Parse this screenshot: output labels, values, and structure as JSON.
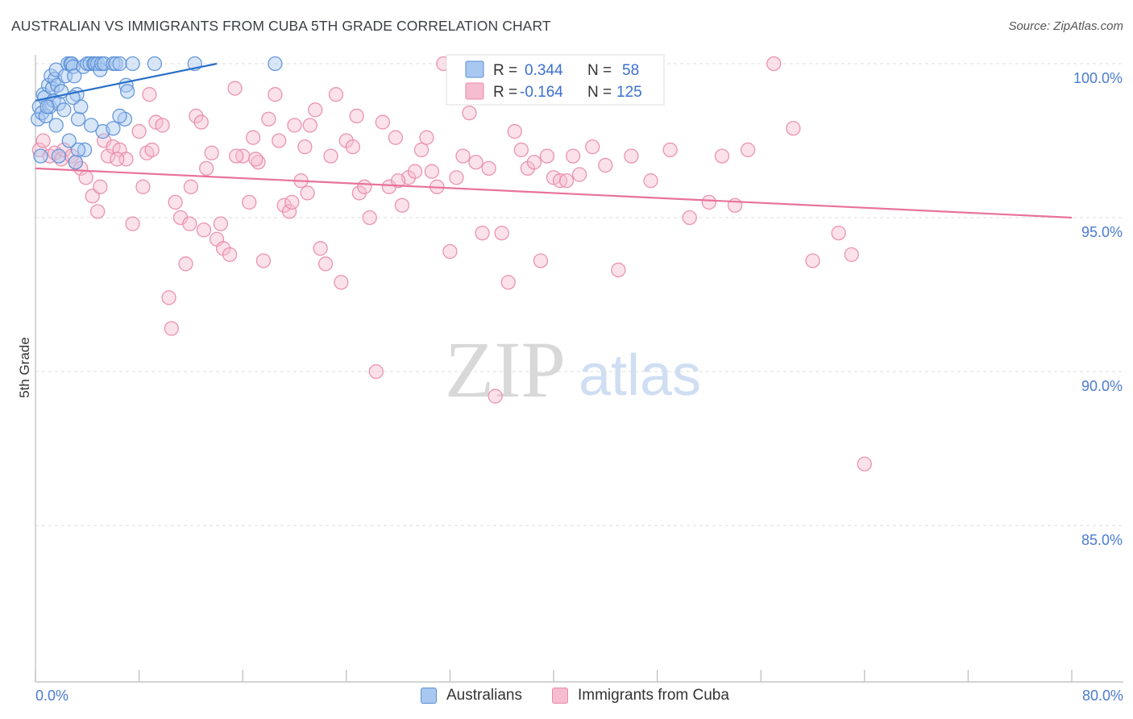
{
  "title": "AUSTRALIAN VS IMMIGRANTS FROM CUBA 5TH GRADE CORRELATION CHART",
  "source": "Source: ZipAtlas.com",
  "watermark": {
    "zip": "ZIP",
    "atlas": "atlas"
  },
  "legend": {
    "r_label": "R =",
    "n_label": "N =",
    "blue": {
      "r": "0.344",
      "n": "58"
    },
    "pink": {
      "r": "-0.164",
      "n": "125"
    }
  },
  "bottom_legend": {
    "blue": "Australians",
    "pink": "Immigrants from Cuba"
  },
  "colors": {
    "blue_fill": "#a9c8f0",
    "blue_stroke": "#5a8fd6",
    "blue_line": "#2a6fc9",
    "pink_fill": "#f6bcd0",
    "pink_stroke": "#e88aa9",
    "pink_line": "#e8739a",
    "tick": "#4a7bd0",
    "grid": "#dddddd"
  },
  "chart_data": {
    "type": "scatter",
    "title": "AUSTRALIAN VS IMMIGRANTS FROM CUBA 5TH GRADE CORRELATION CHART",
    "xlabel": "",
    "ylabel": "5th Grade",
    "xlim": [
      0,
      80
    ],
    "ylim": [
      80.5,
      100.8
    ],
    "x_tick_labels": {
      "left": "0.0%",
      "right": "80.0%"
    },
    "y_ticks": [
      100,
      95,
      90,
      85
    ],
    "y_tick_labels": [
      "100.0%",
      "95.0%",
      "90.0%",
      "85.0%"
    ],
    "series": [
      {
        "name": "Australians",
        "color": "blue",
        "trend": {
          "x0": 0,
          "y0": 98.8,
          "x1": 14,
          "y1": 100.0
        },
        "points": [
          [
            0.2,
            98.2
          ],
          [
            0.3,
            98.6
          ],
          [
            0.5,
            98.4
          ],
          [
            0.6,
            99.0
          ],
          [
            0.7,
            98.9
          ],
          [
            0.8,
            98.3
          ],
          [
            1.0,
            99.3
          ],
          [
            1.1,
            98.6
          ],
          [
            1.2,
            99.6
          ],
          [
            1.3,
            99.2
          ],
          [
            1.4,
            98.8
          ],
          [
            1.5,
            99.5
          ],
          [
            1.6,
            99.8
          ],
          [
            1.7,
            99.3
          ],
          [
            1.8,
            98.7
          ],
          [
            2.0,
            99.1
          ],
          [
            2.2,
            98.5
          ],
          [
            2.3,
            99.6
          ],
          [
            2.5,
            100.0
          ],
          [
            2.7,
            100.0
          ],
          [
            2.8,
            100.0
          ],
          [
            2.9,
            99.9
          ],
          [
            3.0,
            99.6
          ],
          [
            3.2,
            99.0
          ],
          [
            3.3,
            98.2
          ],
          [
            3.5,
            98.6
          ],
          [
            3.7,
            99.9
          ],
          [
            4.0,
            100.0
          ],
          [
            4.2,
            100.0
          ],
          [
            4.5,
            100.0
          ],
          [
            4.6,
            100.0
          ],
          [
            4.8,
            100.0
          ],
          [
            5.0,
            99.8
          ],
          [
            5.1,
            100.0
          ],
          [
            5.3,
            100.0
          ],
          [
            6.0,
            100.0
          ],
          [
            6.2,
            100.0
          ],
          [
            6.5,
            100.0
          ],
          [
            7.0,
            99.3
          ],
          [
            7.5,
            100.0
          ],
          [
            3.8,
            97.2
          ],
          [
            5.2,
            97.8
          ],
          [
            6.0,
            97.9
          ],
          [
            6.9,
            98.2
          ],
          [
            1.6,
            98.0
          ],
          [
            2.9,
            98.9
          ],
          [
            3.3,
            97.2
          ],
          [
            1.8,
            97.0
          ],
          [
            2.6,
            97.5
          ],
          [
            0.4,
            97.0
          ],
          [
            7.1,
            99.1
          ],
          [
            4.3,
            98.0
          ],
          [
            6.5,
            98.3
          ],
          [
            3.1,
            96.8
          ],
          [
            0.9,
            98.6
          ],
          [
            12.3,
            100.0
          ],
          [
            18.5,
            100.0
          ],
          [
            9.2,
            100.0
          ]
        ]
      },
      {
        "name": "Immigrants from Cuba",
        "color": "pink",
        "trend": {
          "x0": 0,
          "y0": 96.6,
          "x1": 80,
          "y1": 95.0
        },
        "points": [
          [
            0.3,
            97.2
          ],
          [
            0.6,
            97.5
          ],
          [
            1.1,
            97.0
          ],
          [
            1.5,
            97.1
          ],
          [
            2.0,
            96.9
          ],
          [
            2.2,
            97.2
          ],
          [
            2.8,
            97.0
          ],
          [
            3.1,
            96.8
          ],
          [
            3.5,
            96.6
          ],
          [
            3.9,
            96.3
          ],
          [
            4.4,
            95.7
          ],
          [
            4.8,
            95.2
          ],
          [
            5.3,
            97.5
          ],
          [
            5.6,
            97.0
          ],
          [
            6.0,
            97.3
          ],
          [
            6.5,
            97.2
          ],
          [
            7.0,
            96.9
          ],
          [
            7.5,
            94.8
          ],
          [
            8.0,
            97.8
          ],
          [
            8.3,
            96.0
          ],
          [
            8.6,
            97.1
          ],
          [
            8.8,
            99.0
          ],
          [
            9.3,
            98.1
          ],
          [
            9.8,
            98.0
          ],
          [
            10.3,
            92.4
          ],
          [
            10.5,
            91.4
          ],
          [
            10.8,
            95.5
          ],
          [
            11.2,
            95.0
          ],
          [
            11.6,
            93.5
          ],
          [
            12.0,
            96.0
          ],
          [
            12.4,
            98.3
          ],
          [
            12.8,
            98.1
          ],
          [
            13.2,
            96.6
          ],
          [
            13.6,
            97.1
          ],
          [
            14.0,
            94.3
          ],
          [
            14.5,
            94.0
          ],
          [
            15.0,
            93.8
          ],
          [
            15.4,
            99.2
          ],
          [
            16.0,
            97.0
          ],
          [
            16.5,
            95.5
          ],
          [
            16.8,
            97.6
          ],
          [
            17.2,
            96.8
          ],
          [
            17.6,
            93.6
          ],
          [
            18.0,
            98.2
          ],
          [
            18.5,
            99.0
          ],
          [
            18.8,
            97.5
          ],
          [
            19.2,
            95.4
          ],
          [
            19.6,
            95.2
          ],
          [
            20.0,
            98.0
          ],
          [
            20.5,
            96.2
          ],
          [
            20.8,
            97.3
          ],
          [
            21.2,
            98.0
          ],
          [
            21.6,
            98.5
          ],
          [
            22.0,
            94.0
          ],
          [
            22.4,
            93.5
          ],
          [
            22.8,
            97.0
          ],
          [
            23.2,
            99.0
          ],
          [
            23.6,
            92.9
          ],
          [
            24.0,
            97.5
          ],
          [
            24.5,
            97.3
          ],
          [
            25.0,
            95.8
          ],
          [
            25.4,
            96.0
          ],
          [
            25.8,
            95.0
          ],
          [
            26.3,
            90.0
          ],
          [
            26.8,
            98.1
          ],
          [
            27.3,
            96.0
          ],
          [
            27.8,
            97.6
          ],
          [
            28.3,
            95.4
          ],
          [
            28.8,
            96.3
          ],
          [
            29.3,
            96.5
          ],
          [
            29.8,
            97.2
          ],
          [
            30.2,
            97.6
          ],
          [
            30.6,
            96.5
          ],
          [
            31.0,
            96.0
          ],
          [
            31.5,
            100.0
          ],
          [
            32.0,
            93.9
          ],
          [
            32.5,
            96.3
          ],
          [
            33.0,
            97.0
          ],
          [
            33.5,
            98.4
          ],
          [
            34.0,
            96.8
          ],
          [
            34.5,
            94.5
          ],
          [
            35.0,
            96.6
          ],
          [
            35.5,
            89.2
          ],
          [
            36.0,
            94.5
          ],
          [
            36.5,
            92.9
          ],
          [
            37.0,
            97.8
          ],
          [
            37.5,
            97.2
          ],
          [
            38.0,
            96.6
          ],
          [
            38.5,
            96.8
          ],
          [
            39.0,
            93.6
          ],
          [
            39.5,
            97.0
          ],
          [
            40.0,
            96.3
          ],
          [
            40.5,
            96.2
          ],
          [
            41.0,
            96.2
          ],
          [
            41.5,
            97.0
          ],
          [
            42.0,
            96.4
          ],
          [
            43.0,
            97.3
          ],
          [
            44.0,
            96.7
          ],
          [
            45.0,
            93.3
          ],
          [
            46.0,
            97.0
          ],
          [
            47.5,
            96.2
          ],
          [
            49.0,
            97.2
          ],
          [
            50.5,
            95.0
          ],
          [
            52.0,
            95.5
          ],
          [
            53.0,
            97.0
          ],
          [
            54.0,
            95.4
          ],
          [
            55.0,
            97.2
          ],
          [
            57.0,
            100.0
          ],
          [
            58.5,
            97.9
          ],
          [
            60.0,
            93.6
          ],
          [
            62.0,
            94.5
          ],
          [
            63.0,
            93.8
          ],
          [
            64.0,
            87.0
          ],
          [
            6.3,
            96.9
          ],
          [
            9.0,
            97.2
          ],
          [
            11.9,
            94.8
          ],
          [
            14.3,
            94.8
          ],
          [
            17.0,
            96.9
          ],
          [
            13.0,
            94.6
          ],
          [
            5.0,
            96.0
          ],
          [
            15.5,
            97.0
          ],
          [
            19.8,
            95.5
          ],
          [
            21.0,
            95.8
          ],
          [
            24.8,
            98.3
          ],
          [
            28.0,
            96.2
          ]
        ]
      }
    ]
  }
}
